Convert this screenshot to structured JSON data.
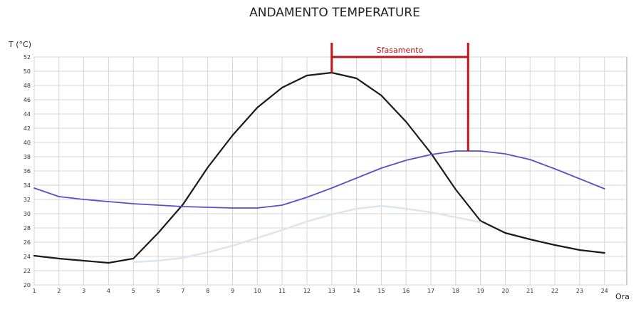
{
  "chart_data": {
    "type": "line",
    "title": "ANDAMENTO TEMPERATURE",
    "xlabel": "Ora",
    "ylabel": "T (°C)",
    "xlim": [
      1,
      24.9
    ],
    "ylim": [
      20,
      52
    ],
    "x_ticks": [
      1,
      2,
      3,
      4,
      5,
      6,
      7,
      8,
      9,
      10,
      11,
      12,
      13,
      14,
      15,
      16,
      17,
      18,
      19,
      20,
      21,
      22,
      23,
      24
    ],
    "y_ticks": [
      20,
      22,
      24,
      26,
      28,
      30,
      32,
      34,
      36,
      38,
      40,
      42,
      44,
      46,
      48,
      50,
      52
    ],
    "grid": true,
    "legend": "none",
    "series": [
      {
        "color": "#1a1a1a",
        "x": [
          1,
          2,
          3,
          4,
          5,
          6,
          7,
          8,
          9,
          10,
          11,
          12,
          13,
          14,
          15,
          16,
          17,
          18,
          19,
          20,
          21,
          22,
          23,
          24
        ],
        "values": [
          24.1,
          23.7,
          23.4,
          23.1,
          23.7,
          27.3,
          31.3,
          36.5,
          41.0,
          44.9,
          47.7,
          49.4,
          49.8,
          49.0,
          46.6,
          42.9,
          38.5,
          33.4,
          29.0,
          27.3,
          26.4,
          25.6,
          24.9,
          24.5
        ]
      },
      {
        "color": "#5a4fc8",
        "x": [
          1,
          2,
          3,
          4,
          5,
          6,
          7,
          8,
          9,
          10,
          11,
          12,
          13,
          14,
          15,
          16,
          17,
          18,
          19,
          20,
          21,
          22,
          23,
          24
        ],
        "values": [
          33.6,
          32.4,
          32.0,
          31.7,
          31.4,
          31.2,
          31.0,
          30.9,
          30.8,
          30.8,
          31.2,
          32.3,
          33.6,
          35.0,
          36.4,
          37.5,
          38.3,
          38.8,
          38.8,
          38.4,
          37.6,
          36.3,
          34.9,
          33.5
        ]
      },
      {
        "color": "#dde6ec",
        "x": [
          5,
          6,
          7,
          8,
          9,
          10,
          11,
          12,
          13,
          14,
          15,
          16,
          17,
          18,
          19
        ],
        "values": [
          23.2,
          23.4,
          23.8,
          24.6,
          25.5,
          26.6,
          27.7,
          28.9,
          29.9,
          30.7,
          31.1,
          30.7,
          30.2,
          29.5,
          28.8
        ]
      }
    ],
    "annotations": [
      {
        "text": "Sfasamento",
        "x_start": 13,
        "x_end": 18.5,
        "y": 52.0,
        "color": "#c0161b"
      }
    ]
  }
}
